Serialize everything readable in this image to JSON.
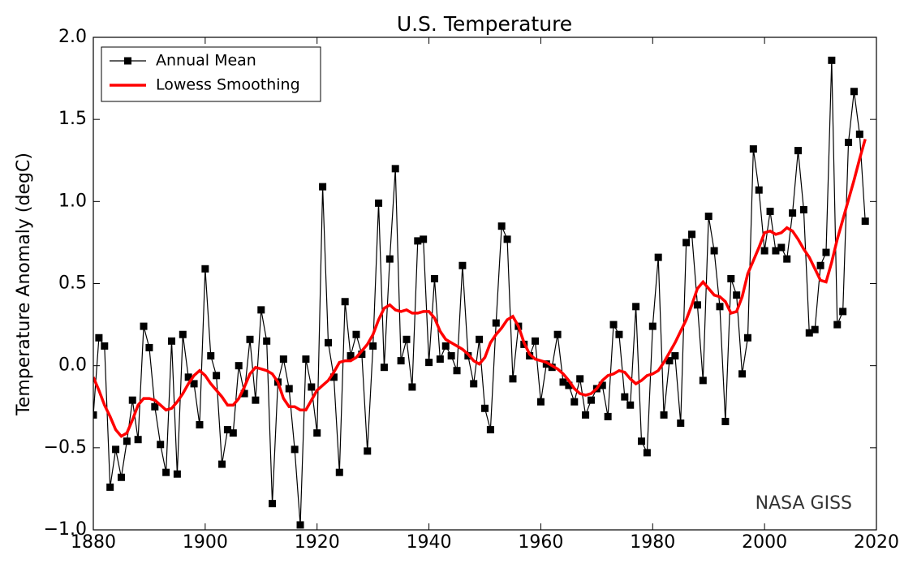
{
  "chart_data": {
    "type": "line",
    "title": "U.S. Temperature",
    "ylabel": "Temperature Anomaly (degC)",
    "annotation": "NASA GISS",
    "x": [
      1880,
      1881,
      1882,
      1883,
      1884,
      1885,
      1886,
      1887,
      1888,
      1889,
      1890,
      1891,
      1892,
      1893,
      1894,
      1895,
      1896,
      1897,
      1898,
      1899,
      1900,
      1901,
      1902,
      1903,
      1904,
      1905,
      1906,
      1907,
      1908,
      1909,
      1910,
      1911,
      1912,
      1913,
      1914,
      1915,
      1916,
      1917,
      1918,
      1919,
      1920,
      1921,
      1922,
      1923,
      1924,
      1925,
      1926,
      1927,
      1928,
      1929,
      1930,
      1931,
      1932,
      1933,
      1934,
      1935,
      1936,
      1937,
      1938,
      1939,
      1940,
      1941,
      1942,
      1943,
      1944,
      1945,
      1946,
      1947,
      1948,
      1949,
      1950,
      1951,
      1952,
      1953,
      1954,
      1955,
      1956,
      1957,
      1958,
      1959,
      1960,
      1961,
      1962,
      1963,
      1964,
      1965,
      1966,
      1967,
      1968,
      1969,
      1970,
      1971,
      1972,
      1973,
      1974,
      1975,
      1976,
      1977,
      1978,
      1979,
      1980,
      1981,
      1982,
      1983,
      1984,
      1985,
      1986,
      1987,
      1988,
      1989,
      1990,
      1991,
      1992,
      1993,
      1994,
      1995,
      1996,
      1997,
      1998,
      1999,
      2000,
      2001,
      2002,
      2003,
      2004,
      2005,
      2006,
      2007,
      2008,
      2009,
      2010,
      2011,
      2012,
      2013,
      2014,
      2015,
      2016,
      2017,
      2018
    ],
    "series": [
      {
        "name": "Annual Mean",
        "color": "#000000",
        "marker": "square",
        "values": [
          -0.3,
          0.17,
          0.12,
          -0.74,
          -0.51,
          -0.68,
          -0.46,
          -0.21,
          -0.45,
          0.24,
          0.11,
          -0.25,
          -0.48,
          -0.65,
          0.15,
          -0.66,
          0.19,
          -0.07,
          -0.11,
          -0.36,
          0.59,
          0.06,
          -0.06,
          -0.6,
          -0.39,
          -0.41,
          0.0,
          -0.17,
          0.16,
          -0.21,
          0.34,
          0.15,
          -0.84,
          -0.1,
          0.04,
          -0.14,
          -0.51,
          -0.97,
          0.04,
          -0.13,
          -0.41,
          1.09,
          0.14,
          -0.07,
          -0.65,
          0.39,
          0.06,
          0.19,
          0.07,
          -0.52,
          0.12,
          0.99,
          -0.01,
          0.65,
          1.2,
          0.03,
          0.16,
          -0.13,
          0.76,
          0.77,
          0.02,
          0.53,
          0.04,
          0.12,
          0.06,
          -0.03,
          0.61,
          0.06,
          -0.11,
          0.16,
          -0.26,
          -0.39,
          0.26,
          0.85,
          0.77,
          -0.08,
          0.24,
          0.13,
          0.06,
          0.15,
          -0.22,
          0.01,
          -0.01,
          0.19,
          -0.1,
          -0.12,
          -0.22,
          -0.08,
          -0.3,
          -0.21,
          -0.14,
          -0.12,
          -0.31,
          0.25,
          0.19,
          -0.19,
          -0.24,
          0.36,
          -0.46,
          -0.53,
          0.24,
          0.66,
          -0.3,
          0.03,
          0.06,
          -0.35,
          0.75,
          0.8,
          0.37,
          -0.09,
          0.91,
          0.7,
          0.36,
          -0.34,
          0.53,
          0.43,
          -0.05,
          0.17,
          1.32,
          1.07,
          0.7,
          0.94,
          0.7,
          0.72,
          0.65,
          0.93,
          1.31,
          0.95,
          0.2,
          0.22,
          0.61,
          0.69,
          1.86,
          0.25,
          0.33,
          1.36,
          1.67,
          1.41,
          0.88
        ]
      },
      {
        "name": "Lowess Smoothing",
        "color": "#ff0000",
        "values": [
          -0.07,
          -0.15,
          -0.24,
          -0.31,
          -0.39,
          -0.43,
          -0.41,
          -0.33,
          -0.24,
          -0.2,
          -0.2,
          -0.21,
          -0.24,
          -0.27,
          -0.26,
          -0.22,
          -0.17,
          -0.11,
          -0.06,
          -0.03,
          -0.06,
          -0.11,
          -0.15,
          -0.19,
          -0.24,
          -0.24,
          -0.2,
          -0.13,
          -0.05,
          -0.01,
          -0.02,
          -0.03,
          -0.05,
          -0.1,
          -0.2,
          -0.25,
          -0.25,
          -0.27,
          -0.27,
          -0.21,
          -0.15,
          -0.12,
          -0.09,
          -0.04,
          0.02,
          0.03,
          0.03,
          0.05,
          0.09,
          0.13,
          0.19,
          0.28,
          0.35,
          0.37,
          0.34,
          0.33,
          0.34,
          0.32,
          0.32,
          0.33,
          0.33,
          0.29,
          0.21,
          0.16,
          0.14,
          0.12,
          0.1,
          0.07,
          0.03,
          0.01,
          0.05,
          0.14,
          0.19,
          0.23,
          0.28,
          0.3,
          0.24,
          0.14,
          0.07,
          0.04,
          0.03,
          0.02,
          0.0,
          -0.02,
          -0.05,
          -0.09,
          -0.14,
          -0.17,
          -0.18,
          -0.17,
          -0.14,
          -0.09,
          -0.06,
          -0.05,
          -0.03,
          -0.04,
          -0.08,
          -0.11,
          -0.09,
          -0.06,
          -0.05,
          -0.03,
          0.02,
          0.08,
          0.14,
          0.21,
          0.28,
          0.37,
          0.47,
          0.51,
          0.47,
          0.43,
          0.42,
          0.39,
          0.32,
          0.33,
          0.42,
          0.56,
          0.64,
          0.72,
          0.81,
          0.82,
          0.8,
          0.81,
          0.84,
          0.82,
          0.77,
          0.71,
          0.66,
          0.59,
          0.52,
          0.51,
          0.63,
          0.77,
          0.89,
          1.01,
          1.13,
          1.26,
          1.38
        ]
      }
    ],
    "xlim": [
      1880,
      2020
    ],
    "xticks": [
      1880,
      1900,
      1920,
      1940,
      1960,
      1980,
      2000,
      2020
    ],
    "ylim": [
      -1.0,
      2.0
    ],
    "yticks": [
      {
        "value": -1.0,
        "label": "−1.0"
      },
      {
        "value": -0.5,
        "label": "−0.5"
      },
      {
        "value": 0.0,
        "label": "0.0"
      },
      {
        "value": 0.5,
        "label": "0.5"
      },
      {
        "value": 1.0,
        "label": "1.0"
      },
      {
        "value": 1.5,
        "label": "1.5"
      },
      {
        "value": 2.0,
        "label": "2.0"
      }
    ],
    "grid": false,
    "legend": "upper left"
  }
}
